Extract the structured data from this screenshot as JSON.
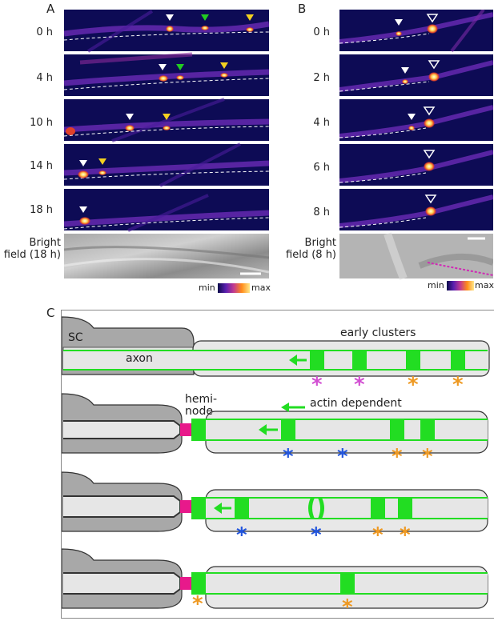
{
  "panel_a": {
    "label": "A",
    "timepoints": [
      "0 h",
      "4 h",
      "10 h",
      "14 h",
      "18 h"
    ],
    "brightfield_label_1": "Bright",
    "brightfield_label_2": "field (18 h)",
    "colorbar_min": "min",
    "colorbar_max": "max"
  },
  "panel_b": {
    "label": "B",
    "timepoints": [
      "0 h",
      "2 h",
      "4 h",
      "6 h",
      "8 h"
    ],
    "brightfield_label_1": "Bright",
    "brightfield_label_2": "field (8 h)",
    "colorbar_min": "min",
    "colorbar_max": "max"
  },
  "panel_c": {
    "label": "C",
    "sc_label": "SC",
    "axon_label": "axon",
    "early_clusters_label": "early clusters",
    "hemi_node_label_1": "hemi-",
    "hemi_node_label_2": "node",
    "actin_label": "actin dependent",
    "asterisk": "*"
  },
  "colors": {
    "axon_green": "#22dd22",
    "node_magenta": "#e8198b",
    "asterisk_magenta": "#d24fd2",
    "asterisk_orange": "#ee9922",
    "asterisk_blue": "#2255dd",
    "arrowhead_white": "#ffffff",
    "arrowhead_green": "#22cc22",
    "arrowhead_yellow": "#f2d020"
  }
}
